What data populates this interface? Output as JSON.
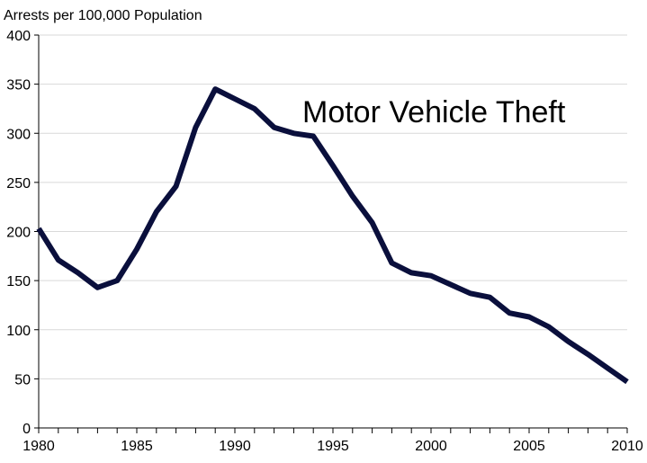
{
  "chart_data": {
    "type": "line",
    "title": "",
    "ylabel": "Arrests per 100,000 Population",
    "xlabel": "",
    "annotation": "Motor Vehicle Theft",
    "xlim": [
      1980,
      2010
    ],
    "ylim": [
      0,
      400
    ],
    "x_ticks": [
      1980,
      1985,
      1990,
      1995,
      2000,
      2005,
      2010
    ],
    "y_ticks": [
      0,
      50,
      100,
      150,
      200,
      250,
      300,
      350,
      400
    ],
    "grid": true,
    "legend": "none",
    "series": [
      {
        "color": "#0a0f3c",
        "x": [
          1980,
          1981,
          1982,
          1983,
          1984,
          1985,
          1986,
          1987,
          1988,
          1989,
          1990,
          1991,
          1992,
          1993,
          1994,
          1995,
          1996,
          1997,
          1998,
          1999,
          2000,
          2001,
          2002,
          2003,
          2004,
          2005,
          2006,
          2007,
          2008,
          2009,
          2010
        ],
        "values": [
          203,
          171,
          158,
          143,
          150,
          182,
          220,
          246,
          306,
          345,
          335,
          325,
          306,
          300,
          297,
          267,
          236,
          209,
          168,
          158,
          155,
          146,
          137,
          133,
          117,
          113,
          103,
          88,
          75,
          61,
          47
        ]
      }
    ]
  }
}
